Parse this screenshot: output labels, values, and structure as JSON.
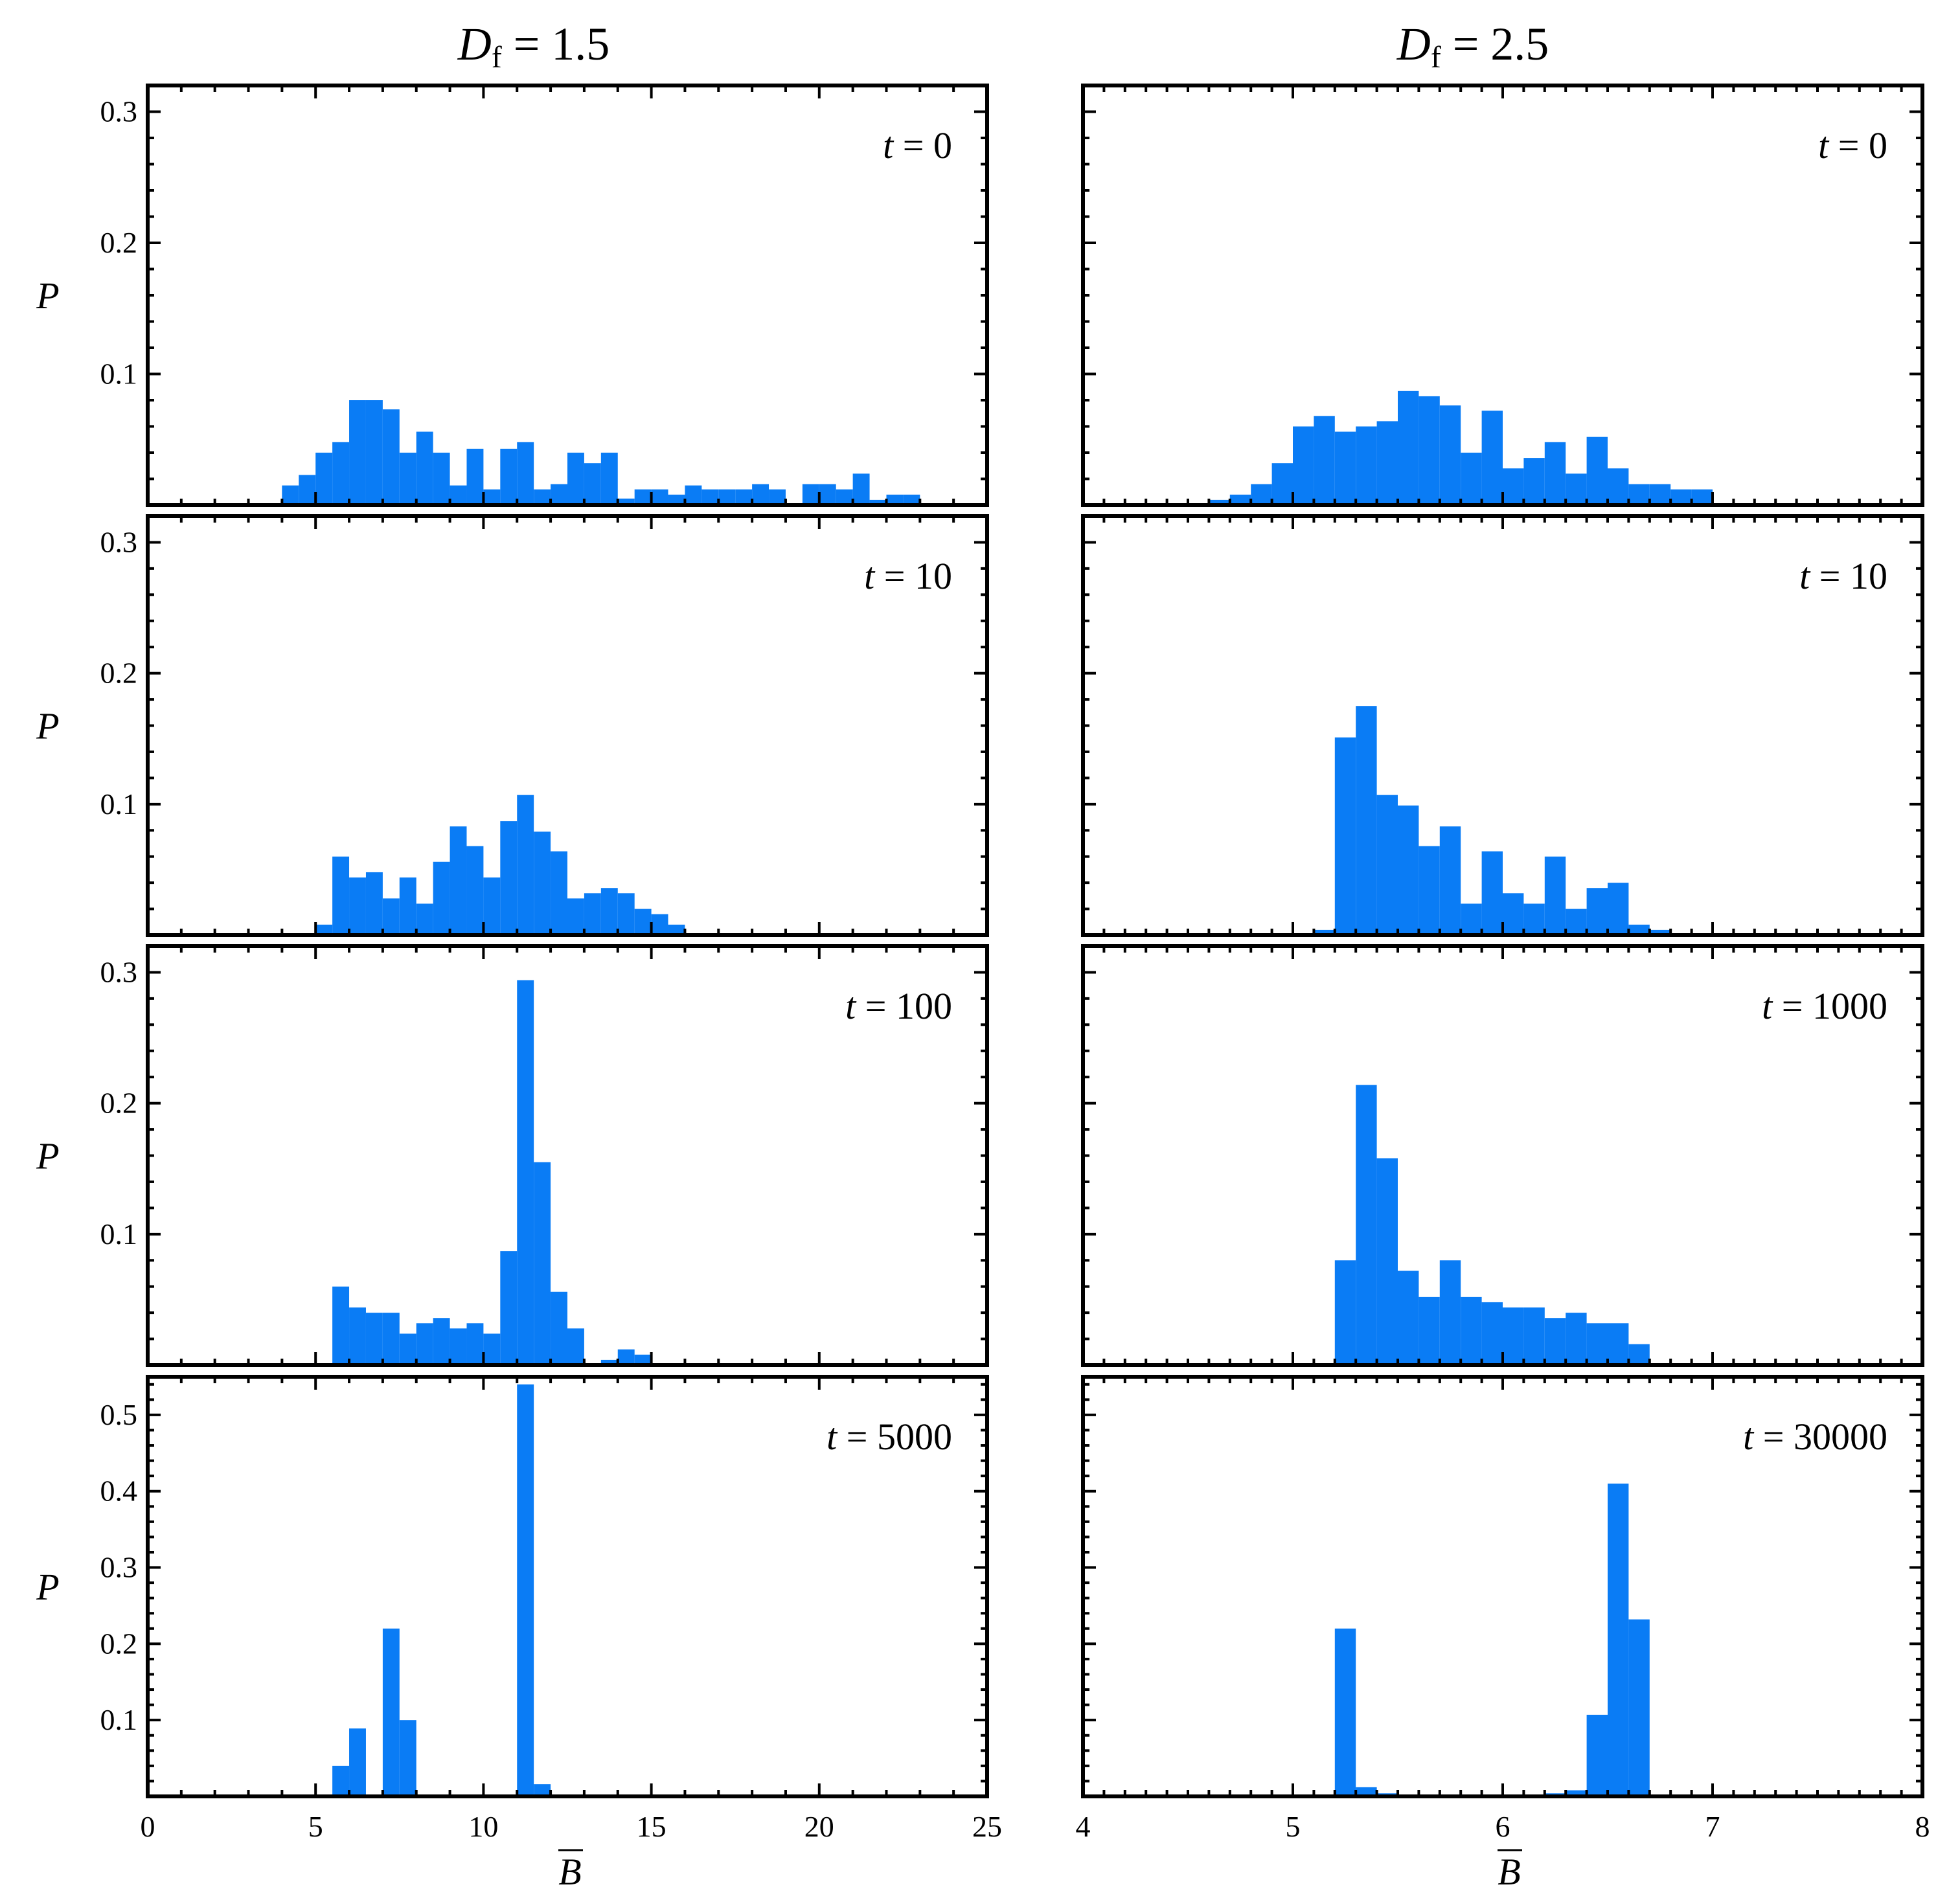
{
  "columns": [
    {
      "title_main": "D",
      "title_sub": "f",
      "title_rest": " = 1.5",
      "xlabel": "B",
      "xticks": [
        "0",
        "5",
        "10",
        "15",
        "20",
        "25"
      ]
    },
    {
      "title_main": "D",
      "title_sub": "f",
      "title_rest": " = 2.5",
      "xlabel": "B",
      "xticks": [
        "4",
        "5",
        "6",
        "7",
        "8"
      ]
    }
  ],
  "colors": {
    "bar": "#0a7cf5",
    "axes": "#000000"
  },
  "chart_data": [
    {
      "type": "bar",
      "column": 0,
      "row": 0,
      "annotation_var": "t",
      "annotation_val": " = 0",
      "ylabel": "P",
      "xlim": [
        0,
        25
      ],
      "ylim": [
        0,
        0.32
      ],
      "xmajor": [
        0,
        5,
        10,
        15,
        20,
        25
      ],
      "xminor": 1,
      "ymajor": [
        0.1,
        0.2,
        0.3
      ],
      "yticklabels": [
        "0.1",
        "0.2",
        "0.3"
      ],
      "yminor": 0.02,
      "bin_width": 0.5,
      "bins": [
        [
          4.0,
          0.015
        ],
        [
          4.5,
          0.023
        ],
        [
          5.0,
          0.04
        ],
        [
          5.5,
          0.048
        ],
        [
          6.0,
          0.08
        ],
        [
          6.5,
          0.08
        ],
        [
          7.0,
          0.073
        ],
        [
          7.5,
          0.04
        ],
        [
          8.0,
          0.056
        ],
        [
          8.5,
          0.04
        ],
        [
          9.0,
          0.015
        ],
        [
          9.5,
          0.043
        ],
        [
          10.0,
          0.012
        ],
        [
          10.5,
          0.043
        ],
        [
          11.0,
          0.048
        ],
        [
          11.5,
          0.012
        ],
        [
          12.0,
          0.016
        ],
        [
          12.5,
          0.04
        ],
        [
          13.0,
          0.032
        ],
        [
          13.5,
          0.04
        ],
        [
          14.0,
          0.005
        ],
        [
          14.5,
          0.012
        ],
        [
          15.0,
          0.012
        ],
        [
          15.5,
          0.008
        ],
        [
          16.0,
          0.015
        ],
        [
          16.5,
          0.012
        ],
        [
          17.0,
          0.012
        ],
        [
          17.5,
          0.012
        ],
        [
          18.0,
          0.016
        ],
        [
          18.5,
          0.012
        ],
        [
          19.0,
          0.0
        ],
        [
          19.5,
          0.016
        ],
        [
          20.0,
          0.016
        ],
        [
          20.5,
          0.012
        ],
        [
          21.0,
          0.024
        ],
        [
          21.5,
          0.004
        ],
        [
          22.0,
          0.008
        ],
        [
          22.5,
          0.008
        ]
      ]
    },
    {
      "type": "bar",
      "column": 0,
      "row": 1,
      "annotation_var": "t",
      "annotation_val": " = 10",
      "ylabel": "P",
      "xlim": [
        0,
        25
      ],
      "ylim": [
        0,
        0.32
      ],
      "xmajor": [
        0,
        5,
        10,
        15,
        20,
        25
      ],
      "xminor": 1,
      "ymajor": [
        0.1,
        0.2,
        0.3
      ],
      "yticklabels": [
        "0.1",
        "0.2",
        "0.3"
      ],
      "yminor": 0.02,
      "bin_width": 0.5,
      "bins": [
        [
          5.0,
          0.008
        ],
        [
          5.5,
          0.06
        ],
        [
          6.0,
          0.044
        ],
        [
          6.5,
          0.048
        ],
        [
          7.0,
          0.028
        ],
        [
          7.5,
          0.044
        ],
        [
          8.0,
          0.024
        ],
        [
          8.5,
          0.056
        ],
        [
          9.0,
          0.083
        ],
        [
          9.5,
          0.068
        ],
        [
          10.0,
          0.044
        ],
        [
          10.5,
          0.087
        ],
        [
          11.0,
          0.107
        ],
        [
          11.5,
          0.079
        ],
        [
          12.0,
          0.064
        ],
        [
          12.5,
          0.028
        ],
        [
          13.0,
          0.032
        ],
        [
          13.5,
          0.036
        ],
        [
          14.0,
          0.032
        ],
        [
          14.5,
          0.02
        ],
        [
          15.0,
          0.016
        ],
        [
          15.5,
          0.008
        ]
      ]
    },
    {
      "type": "bar",
      "column": 0,
      "row": 2,
      "annotation_var": "t",
      "annotation_val": " = 100",
      "ylabel": "P",
      "xlim": [
        0,
        25
      ],
      "ylim": [
        0,
        0.32
      ],
      "xmajor": [
        0,
        5,
        10,
        15,
        20,
        25
      ],
      "xminor": 1,
      "ymajor": [
        0.1,
        0.2,
        0.3
      ],
      "yticklabels": [
        "0.1",
        "0.2",
        "0.3"
      ],
      "yminor": 0.02,
      "bin_width": 0.5,
      "bins": [
        [
          5.5,
          0.06
        ],
        [
          6.0,
          0.044
        ],
        [
          6.5,
          0.04
        ],
        [
          7.0,
          0.04
        ],
        [
          7.5,
          0.024
        ],
        [
          8.0,
          0.032
        ],
        [
          8.5,
          0.036
        ],
        [
          9.0,
          0.028
        ],
        [
          9.5,
          0.032
        ],
        [
          10.0,
          0.024
        ],
        [
          10.5,
          0.087
        ],
        [
          11.0,
          0.294
        ],
        [
          11.5,
          0.155
        ],
        [
          12.0,
          0.056
        ],
        [
          12.5,
          0.028
        ],
        [
          13.0,
          0.0
        ],
        [
          13.5,
          0.004
        ],
        [
          14.0,
          0.012
        ],
        [
          14.5,
          0.008
        ]
      ]
    },
    {
      "type": "bar",
      "column": 0,
      "row": 3,
      "annotation_var": "t",
      "annotation_val": " = 5000",
      "ylabel": "P",
      "xlim": [
        0,
        25
      ],
      "ylim": [
        0,
        0.55
      ],
      "xmajor": [
        0,
        5,
        10,
        15,
        20,
        25
      ],
      "xminor": 1,
      "ymajor": [
        0.1,
        0.2,
        0.3,
        0.4,
        0.5
      ],
      "yticklabels": [
        "0.1",
        "0.2",
        "0.3",
        "0.4",
        "0.5"
      ],
      "yminor": 0.02,
      "bin_width": 0.5,
      "bins": [
        [
          5.5,
          0.04
        ],
        [
          6.0,
          0.089
        ],
        [
          6.5,
          0.0
        ],
        [
          7.0,
          0.22
        ],
        [
          7.5,
          0.1
        ],
        [
          11.0,
          0.54
        ],
        [
          11.5,
          0.016
        ]
      ]
    },
    {
      "type": "bar",
      "column": 1,
      "row": 0,
      "annotation_var": "t",
      "annotation_val": " = 0",
      "ylabel": "",
      "xlim": [
        4,
        8
      ],
      "ylim": [
        0,
        0.32
      ],
      "xmajor": [
        4,
        5,
        6,
        7,
        8
      ],
      "xminor": 0.1,
      "ymajor": [
        0.1,
        0.2,
        0.3
      ],
      "yticklabels": [],
      "yminor": 0.02,
      "bin_width": 0.1,
      "bins": [
        [
          4.6,
          0.004
        ],
        [
          4.7,
          0.008
        ],
        [
          4.8,
          0.016
        ],
        [
          4.9,
          0.032
        ],
        [
          5.0,
          0.06
        ],
        [
          5.1,
          0.068
        ],
        [
          5.2,
          0.056
        ],
        [
          5.3,
          0.06
        ],
        [
          5.4,
          0.064
        ],
        [
          5.5,
          0.087
        ],
        [
          5.6,
          0.083
        ],
        [
          5.7,
          0.076
        ],
        [
          5.8,
          0.04
        ],
        [
          5.9,
          0.072
        ],
        [
          6.0,
          0.028
        ],
        [
          6.1,
          0.036
        ],
        [
          6.2,
          0.048
        ],
        [
          6.3,
          0.024
        ],
        [
          6.4,
          0.052
        ],
        [
          6.5,
          0.028
        ],
        [
          6.6,
          0.016
        ],
        [
          6.7,
          0.016
        ],
        [
          6.8,
          0.012
        ],
        [
          6.9,
          0.012
        ]
      ]
    },
    {
      "type": "bar",
      "column": 1,
      "row": 1,
      "annotation_var": "t",
      "annotation_val": " = 10",
      "ylabel": "",
      "xlim": [
        4,
        8
      ],
      "ylim": [
        0,
        0.32
      ],
      "xmajor": [
        4,
        5,
        6,
        7,
        8
      ],
      "xminor": 0.1,
      "ymajor": [
        0.1,
        0.2,
        0.3
      ],
      "yticklabels": [],
      "yminor": 0.02,
      "bin_width": 0.1,
      "bins": [
        [
          5.1,
          0.004
        ],
        [
          5.2,
          0.151
        ],
        [
          5.3,
          0.175
        ],
        [
          5.4,
          0.107
        ],
        [
          5.5,
          0.099
        ],
        [
          5.6,
          0.068
        ],
        [
          5.7,
          0.083
        ],
        [
          5.8,
          0.024
        ],
        [
          5.9,
          0.064
        ],
        [
          6.0,
          0.032
        ],
        [
          6.1,
          0.024
        ],
        [
          6.2,
          0.06
        ],
        [
          6.3,
          0.02
        ],
        [
          6.4,
          0.036
        ],
        [
          6.5,
          0.04
        ],
        [
          6.6,
          0.008
        ],
        [
          6.7,
          0.004
        ]
      ]
    },
    {
      "type": "bar",
      "column": 1,
      "row": 2,
      "annotation_var": "t",
      "annotation_val": " = 1000",
      "ylabel": "",
      "xlim": [
        4,
        8
      ],
      "ylim": [
        0,
        0.32
      ],
      "xmajor": [
        4,
        5,
        6,
        7,
        8
      ],
      "xminor": 0.1,
      "ymajor": [
        0.1,
        0.2,
        0.3
      ],
      "yticklabels": [],
      "yminor": 0.02,
      "bin_width": 0.1,
      "bins": [
        [
          5.2,
          0.08
        ],
        [
          5.3,
          0.214
        ],
        [
          5.4,
          0.158
        ],
        [
          5.5,
          0.072
        ],
        [
          5.6,
          0.052
        ],
        [
          5.7,
          0.08
        ],
        [
          5.8,
          0.052
        ],
        [
          5.9,
          0.048
        ],
        [
          6.0,
          0.044
        ],
        [
          6.1,
          0.044
        ],
        [
          6.2,
          0.036
        ],
        [
          6.3,
          0.04
        ],
        [
          6.4,
          0.032
        ],
        [
          6.5,
          0.032
        ],
        [
          6.6,
          0.016
        ]
      ]
    },
    {
      "type": "bar",
      "column": 1,
      "row": 3,
      "annotation_var": "t",
      "annotation_val": " = 30000",
      "ylabel": "",
      "xlim": [
        4,
        8
      ],
      "ylim": [
        0,
        0.55
      ],
      "xmajor": [
        4,
        5,
        6,
        7,
        8
      ],
      "xminor": 0.1,
      "ymajor": [
        0.1,
        0.2,
        0.3,
        0.4,
        0.5
      ],
      "yticklabels": [],
      "yminor": 0.02,
      "bin_width": 0.1,
      "bins": [
        [
          5.2,
          0.22
        ],
        [
          5.3,
          0.012
        ],
        [
          5.4,
          0.004
        ],
        [
          6.2,
          0.004
        ],
        [
          6.3,
          0.008
        ],
        [
          6.4,
          0.107
        ],
        [
          6.5,
          0.41
        ],
        [
          6.6,
          0.232
        ]
      ]
    }
  ]
}
